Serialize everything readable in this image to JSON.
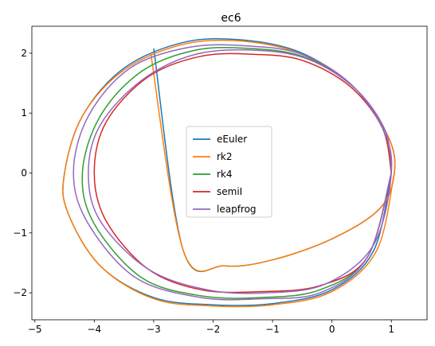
{
  "chart_data": {
    "type": "line",
    "title": "ec6",
    "xlabel": "",
    "ylabel": "",
    "xlim": [
      -5.05,
      1.6
    ],
    "ylim": [
      -2.45,
      2.45
    ],
    "xticks": [
      -5,
      -4,
      -3,
      -2,
      -1,
      0,
      1
    ],
    "yticks": [
      -2,
      -1,
      0,
      1,
      2
    ],
    "xtick_labels": [
      "−5",
      "−4",
      "−3",
      "−2",
      "−1",
      "0",
      "1"
    ],
    "ytick_labels": [
      "−2",
      "−1",
      "0",
      "1",
      "2"
    ],
    "grid": false,
    "legend_position": "center",
    "series": [
      {
        "name": "eEuler",
        "color": "#1f77b4",
        "x": [
          1.0,
          0.7,
          0.0,
          -1.0,
          -2.0,
          -3.0,
          -3.9,
          -4.45,
          -4.5,
          -4.2,
          -3.5,
          -2.5,
          -1.5,
          -0.5,
          0.4,
          0.95,
          1.05,
          0.8,
          0.0,
          -1.0,
          -1.8,
          -2.5,
          -3.0
        ],
        "y": [
          0.0,
          -1.3,
          -1.95,
          -2.18,
          -2.2,
          -2.08,
          -1.55,
          -0.65,
          0.0,
          0.95,
          1.75,
          2.18,
          2.22,
          2.0,
          1.4,
          0.6,
          0.0,
          -0.6,
          -1.1,
          -1.45,
          -1.55,
          -1.3,
          2.08
        ]
      },
      {
        "name": "rk2",
        "color": "#ff7f0e",
        "x": [
          1.05,
          0.75,
          0.0,
          -1.0,
          -2.0,
          -3.0,
          -3.9,
          -4.45,
          -4.5,
          -4.2,
          -3.5,
          -2.5,
          -1.5,
          -0.5,
          0.4,
          0.95,
          1.05,
          0.8,
          0.0,
          -1.0,
          -1.8,
          -2.5,
          -3.05
        ],
        "y": [
          0.0,
          -1.3,
          -1.98,
          -2.2,
          -2.22,
          -2.1,
          -1.55,
          -0.65,
          0.0,
          0.95,
          1.72,
          2.15,
          2.2,
          1.98,
          1.4,
          0.6,
          0.0,
          -0.6,
          -1.1,
          -1.45,
          -1.55,
          -1.3,
          2.0
        ]
      },
      {
        "name": "rk4",
        "color": "#2ca02c",
        "x": [
          1.0,
          0.6,
          -0.2,
          -1.2,
          -2.2,
          -3.2,
          -4.0,
          -4.2,
          -3.9,
          -3.2,
          -2.3,
          -1.4,
          -0.5,
          0.3,
          0.85,
          1.0
        ],
        "y": [
          0.0,
          -1.4,
          -1.95,
          -2.08,
          -2.05,
          -1.75,
          -0.85,
          0.0,
          0.95,
          1.7,
          2.05,
          2.08,
          1.95,
          1.5,
          0.75,
          0.0
        ]
      },
      {
        "name": "semiI",
        "color": "#d62728",
        "x": [
          1.0,
          0.6,
          -0.2,
          -1.2,
          -2.2,
          -3.1,
          -3.8,
          -4.0,
          -3.8,
          -3.1,
          -2.2,
          -1.3,
          -0.5,
          0.3,
          0.85,
          1.0
        ],
        "y": [
          0.0,
          -1.4,
          -1.88,
          -1.98,
          -1.95,
          -1.6,
          -0.8,
          0.0,
          0.85,
          1.6,
          1.95,
          1.98,
          1.88,
          1.45,
          0.75,
          0.0
        ]
      },
      {
        "name": "leapfrog",
        "color": "#9467bd",
        "x": [
          1.0,
          0.6,
          -0.2,
          -1.2,
          -2.2,
          -3.3,
          -4.1,
          -4.35,
          -4.1,
          -3.4,
          -2.4,
          -1.4,
          -0.5,
          0.3,
          0.85,
          1.0,
          0.7,
          -0.1,
          -1.1,
          -2.1,
          -3.1,
          -3.9,
          -4.1,
          -3.9,
          -3.2,
          -2.3,
          -1.3,
          -0.4,
          0.4,
          0.9,
          1.0
        ],
        "y": [
          0.0,
          -1.4,
          -2.0,
          -2.1,
          -2.08,
          -1.75,
          -0.85,
          0.0,
          0.95,
          1.75,
          2.1,
          2.12,
          1.98,
          1.5,
          0.75,
          0.0,
          -1.2,
          -1.85,
          -2.0,
          -1.95,
          -1.6,
          -0.8,
          0.0,
          0.8,
          1.55,
          1.98,
          2.05,
          1.9,
          1.4,
          0.7,
          0.0
        ]
      }
    ]
  }
}
